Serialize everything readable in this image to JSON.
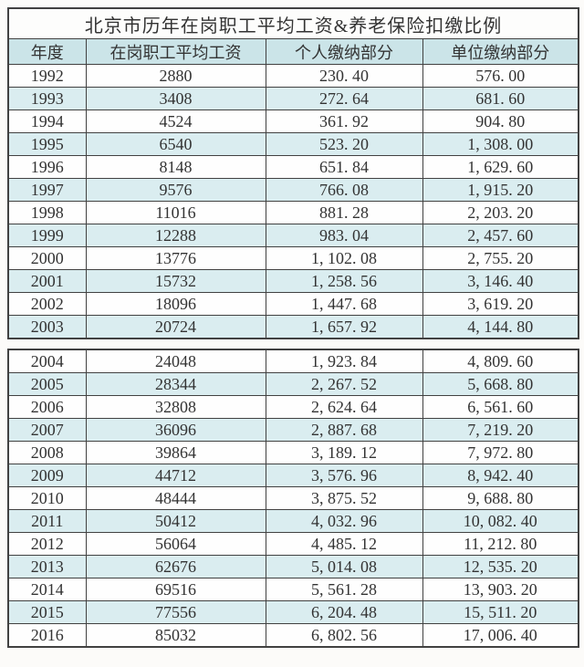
{
  "page": {
    "background": "#fcfbf9"
  },
  "table": {
    "colors": {
      "header_bg": "#cbe4e8",
      "zebra_bg": "#daedf0",
      "row_bg": "#fefefe",
      "title_bg": "#fdfdfc",
      "border": "#414141",
      "text": "#333333"
    }
  },
  "chart_data": {
    "type": "table",
    "title": "北京市历年在岗职工平均工资&养老保险扣缴比例",
    "columns": [
      "年度",
      "在岗职工平均工资",
      "个人缴纳部分",
      "单位缴纳部分"
    ],
    "blocks": [
      {
        "rows": [
          {
            "year": 1992,
            "avg_wage": 2880,
            "personal": 230.4,
            "employer": 576.0
          },
          {
            "year": 1993,
            "avg_wage": 3408,
            "personal": 272.64,
            "employer": 681.6
          },
          {
            "year": 1994,
            "avg_wage": 4524,
            "personal": 361.92,
            "employer": 904.8
          },
          {
            "year": 1995,
            "avg_wage": 6540,
            "personal": 523.2,
            "employer": 1308.0
          },
          {
            "year": 1996,
            "avg_wage": 8148,
            "personal": 651.84,
            "employer": 1629.6
          },
          {
            "year": 1997,
            "avg_wage": 9576,
            "personal": 766.08,
            "employer": 1915.2
          },
          {
            "year": 1998,
            "avg_wage": 11016,
            "personal": 881.28,
            "employer": 2203.2
          },
          {
            "year": 1999,
            "avg_wage": 12288,
            "personal": 983.04,
            "employer": 2457.6
          },
          {
            "year": 2000,
            "avg_wage": 13776,
            "personal": 1102.08,
            "employer": 2755.2
          },
          {
            "year": 2001,
            "avg_wage": 15732,
            "personal": 1258.56,
            "employer": 3146.4
          },
          {
            "year": 2002,
            "avg_wage": 18096,
            "personal": 1447.68,
            "employer": 3619.2
          },
          {
            "year": 2003,
            "avg_wage": 20724,
            "personal": 1657.92,
            "employer": 4144.8
          }
        ]
      },
      {
        "rows": [
          {
            "year": 2004,
            "avg_wage": 24048,
            "personal": 1923.84,
            "employer": 4809.6
          },
          {
            "year": 2005,
            "avg_wage": 28344,
            "personal": 2267.52,
            "employer": 5668.8
          },
          {
            "year": 2006,
            "avg_wage": 32808,
            "personal": 2624.64,
            "employer": 6561.6
          },
          {
            "year": 2007,
            "avg_wage": 36096,
            "personal": 2887.68,
            "employer": 7219.2
          },
          {
            "year": 2008,
            "avg_wage": 39864,
            "personal": 3189.12,
            "employer": 7972.8
          },
          {
            "year": 2009,
            "avg_wage": 44712,
            "personal": 3576.96,
            "employer": 8942.4
          },
          {
            "year": 2010,
            "avg_wage": 48444,
            "personal": 3875.52,
            "employer": 9688.8
          },
          {
            "year": 2011,
            "avg_wage": 50412,
            "personal": 4032.96,
            "employer": 10082.4
          },
          {
            "year": 2012,
            "avg_wage": 56064,
            "personal": 4485.12,
            "employer": 11212.8
          },
          {
            "year": 2013,
            "avg_wage": 62676,
            "personal": 5014.08,
            "employer": 12535.2
          },
          {
            "year": 2014,
            "avg_wage": 69516,
            "personal": 5561.28,
            "employer": 13903.2
          },
          {
            "year": 2015,
            "avg_wage": 77556,
            "personal": 6204.48,
            "employer": 15511.2
          },
          {
            "year": 2016,
            "avg_wage": 85032,
            "personal": 6802.56,
            "employer": 17006.4
          }
        ]
      }
    ]
  }
}
